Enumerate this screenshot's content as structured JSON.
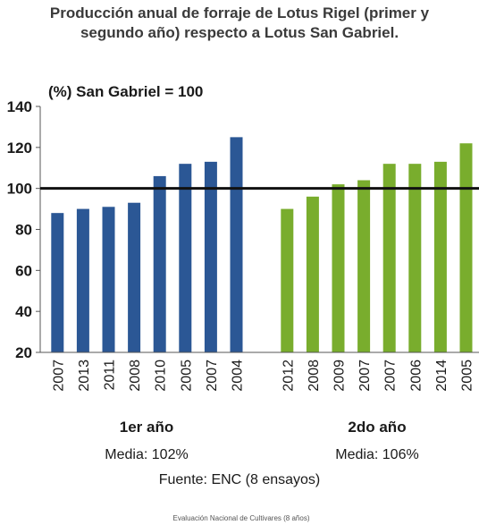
{
  "chart_data": {
    "type": "bar",
    "title_lines": [
      "Producción anual de forraje de Lotus Rigel (primer y",
      "segundo año) respecto a Lotus San Gabriel."
    ],
    "ylabel": "(%) San Gabriel = 100",
    "ylim": [
      20,
      140
    ],
    "yticks": [
      20,
      40,
      60,
      80,
      100,
      120,
      140
    ],
    "reference_line": 100,
    "grid": false,
    "series": [
      {
        "group": "1er año",
        "mean_label": "Media: 102%",
        "color": "#2b5795",
        "categories": [
          "2007",
          "2013",
          "2011",
          "2008",
          "2010",
          "2005",
          "2007",
          "2004"
        ],
        "values": [
          88,
          90,
          91,
          93,
          106,
          112,
          113,
          125
        ]
      },
      {
        "group": "2do año",
        "mean_label": "Media: 106%",
        "color": "#79ad2d",
        "categories": [
          "2012",
          "2008",
          "2009",
          "2007",
          "2007",
          "2006",
          "2014",
          "2005"
        ],
        "values": [
          90,
          96,
          102,
          104,
          112,
          112,
          113,
          122
        ]
      }
    ]
  },
  "source": "Fuente: ENC (8 ensayos)",
  "footer": "Evaluación Nacional de Cultivares (8 años)"
}
